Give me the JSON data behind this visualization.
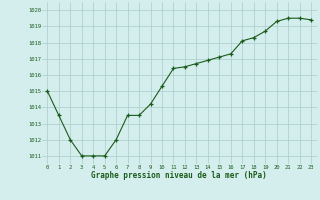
{
  "x": [
    0,
    1,
    2,
    3,
    4,
    5,
    6,
    7,
    8,
    9,
    10,
    11,
    12,
    13,
    14,
    15,
    16,
    17,
    18,
    19,
    20,
    21,
    22,
    23
  ],
  "y": [
    1015.0,
    1013.5,
    1012.0,
    1011.0,
    1011.0,
    1011.0,
    1012.0,
    1013.5,
    1013.5,
    1014.2,
    1015.3,
    1016.4,
    1016.5,
    1016.7,
    1016.9,
    1017.1,
    1017.3,
    1018.1,
    1018.3,
    1018.7,
    1019.3,
    1019.5,
    1019.5,
    1019.4
  ],
  "ylim": [
    1010.5,
    1020.5
  ],
  "yticks": [
    1011,
    1012,
    1013,
    1014,
    1015,
    1016,
    1017,
    1018,
    1019,
    1020
  ],
  "xticks": [
    0,
    1,
    2,
    3,
    4,
    5,
    6,
    7,
    8,
    9,
    10,
    11,
    12,
    13,
    14,
    15,
    16,
    17,
    18,
    19,
    20,
    21,
    22,
    23
  ],
  "xlabel": "Graphe pression niveau de la mer (hPa)",
  "line_color": "#1a5c1a",
  "marker_color": "#1a5c1a",
  "bg_color": "#d4eeee",
  "grid_color": "#aacccc",
  "xlabel_color": "#1a5c1a",
  "tick_color": "#1a5c1a"
}
